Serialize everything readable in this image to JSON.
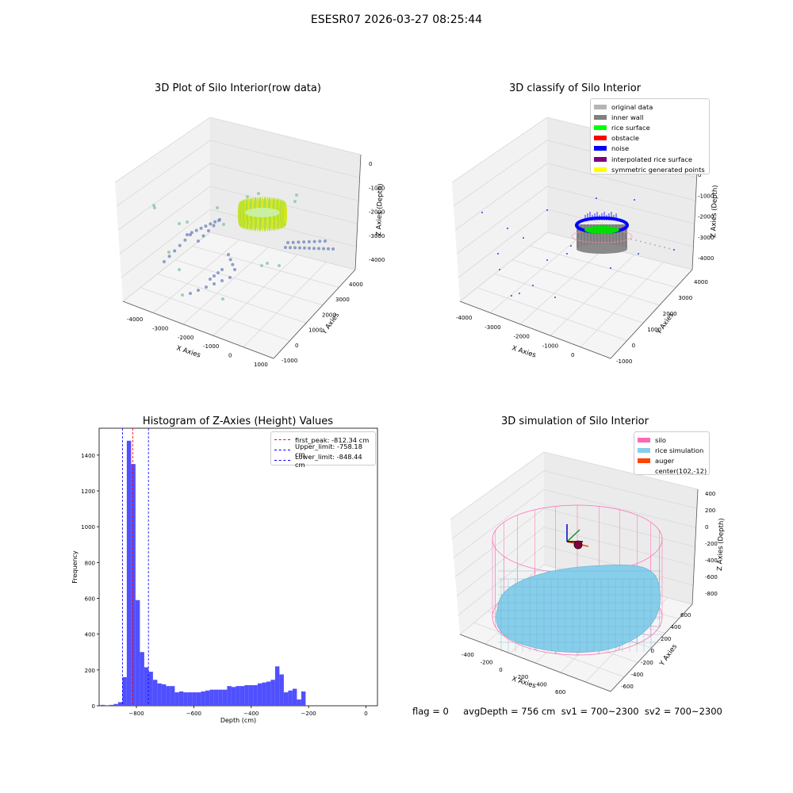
{
  "suptitle": "ESESR07 2026-03-27 08:25:44",
  "status_text": "flag = 0     avgDepth = 756 cm  sv1 = 700~2300  sv2 = 700~2300",
  "panel1": {
    "title": "3D Plot of Silo Interior(row data)",
    "xlabel": "X Axies",
    "ylabel": "Y Axies",
    "zlabel": "Z Axies (Depth)",
    "xticks": [
      "-4000",
      "-3000",
      "-2000",
      "-1000",
      "0",
      "1000"
    ],
    "yticks": [
      "-1000",
      "0",
      "1000",
      "2000",
      "3000",
      "4000"
    ],
    "zticks": [
      "0",
      "-1000",
      "-2000",
      "-3000",
      "-4000"
    ]
  },
  "panel2": {
    "title": "3D classify of Silo Interior",
    "xlabel": "X Axies",
    "ylabel": "Y Axies",
    "zlabel": "Z Axies (Depth)",
    "xticks": [
      "-4000",
      "-3000",
      "-2000",
      "-1000",
      "0"
    ],
    "yticks": [
      "-1000",
      "0",
      "1000",
      "2000",
      "3000",
      "4000"
    ],
    "zticks": [
      "0",
      "-1000",
      "-2000",
      "-3000",
      "-4000"
    ],
    "legend": [
      {
        "label": "original data",
        "color": "#b5b5b5"
      },
      {
        "label": "inner wall",
        "color": "#808080"
      },
      {
        "label": "rice surface",
        "color": "#00ff00"
      },
      {
        "label": "obstacle",
        "color": "#ff0000"
      },
      {
        "label": "noise",
        "color": "#0000ff"
      },
      {
        "label": "interpolated rice surface",
        "color": "#800080"
      },
      {
        "label": "symmetric generated points",
        "color": "#ffff00"
      }
    ]
  },
  "panel4": {
    "title": "3D simulation of Silo Interior",
    "xlabel": "X Axies",
    "ylabel": "Y Axies",
    "zlabel": "Z Axies (Depth)",
    "xticks": [
      "-400",
      "-200",
      "0",
      "200",
      "400",
      "600"
    ],
    "yticks": [
      "-600",
      "-400",
      "-200",
      "0",
      "200",
      "400",
      "600"
    ],
    "zticks": [
      "400",
      "200",
      "0",
      "-200",
      "-400",
      "-600",
      "-800"
    ],
    "legend": [
      {
        "label": "silo",
        "color": "#ff69b4"
      },
      {
        "label": "rice simulation",
        "color": "#87ceeb"
      },
      {
        "label": "auger",
        "color": "#ff4500"
      },
      {
        "label": "center(102,-12)",
        "color": ""
      }
    ]
  },
  "chart_data": [
    {
      "type": "bar",
      "title": "Histogram of Z-Axies (Height) Values",
      "xlabel": "Depth (cm)",
      "ylabel": "Frequency",
      "xlim": [
        -930,
        40
      ],
      "ylim": [
        0,
        1550
      ],
      "xticks": [
        -800,
        -600,
        -400,
        -200,
        0
      ],
      "yticks": [
        0,
        200,
        400,
        600,
        800,
        1000,
        1200,
        1400
      ],
      "bar_color": "#5050ff",
      "bin_start": -940,
      "bin_width": 15.2,
      "values": [
        0,
        5,
        0,
        5,
        10,
        20,
        160,
        1480,
        1350,
        590,
        300,
        215,
        190,
        145,
        125,
        120,
        110,
        110,
        75,
        80,
        75,
        75,
        75,
        75,
        80,
        85,
        90,
        90,
        90,
        90,
        110,
        105,
        110,
        110,
        115,
        115,
        115,
        125,
        130,
        135,
        145,
        220,
        175,
        75,
        85,
        95,
        35,
        80
      ],
      "reference_lines": [
        {
          "label": "first_peak: -812.34 cm",
          "x": -812.34,
          "color": "#ff0000"
        },
        {
          "label": "Upper_limit: -758.18 cm",
          "x": -758.18,
          "color": "#0000ff"
        },
        {
          "label": "Lower_limit: -848.44 cm",
          "x": -848.44,
          "color": "#0000ff"
        }
      ]
    }
  ]
}
